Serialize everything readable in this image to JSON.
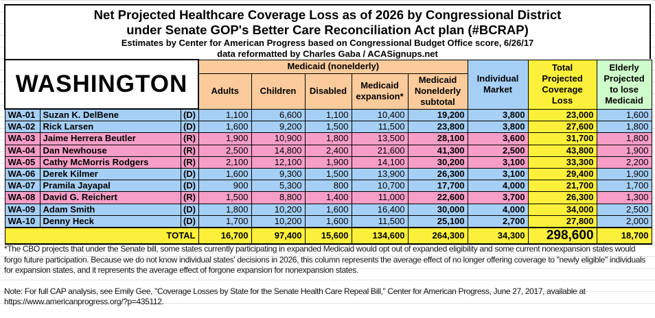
{
  "title": {
    "line1": "Net Projected Healthcare Coverage Loss as of 2026 by Congressional District",
    "line2": "under Senate GOP's Better Care Reconciliation Act plan (#BCRAP)",
    "line3": "Estimates by Center for American Progress based on Congressional Budget Office score, 6/26/17",
    "line4": "data reformatted by Charles Gaba / ACASignups.net"
  },
  "state": "WASHINGTON",
  "headers": {
    "medicaid_group": "Medicaid (nonelderly)",
    "adults": "Adults",
    "children": "Children",
    "disabled": "Disabled",
    "expansion": "Medicaid expansion*",
    "subtotal": "Medicaid Nonelderly subtotal",
    "individual": "Individual Market",
    "total": "Total Projected Coverage Loss",
    "elderly": "Elderly Projected to lose Medicaid"
  },
  "colors": {
    "democrat": "#a6cff5",
    "republican": "#f79ec8",
    "medicaid_header": "#fbcb9c",
    "total": "#fdf03a",
    "elderly_header": "#cffccb"
  },
  "rows": [
    {
      "district": "WA-01",
      "name": "Suzan K. DelBene",
      "party": "(D)",
      "adults": "1,100",
      "children": "6,600",
      "disabled": "1,100",
      "expansion": "10,400",
      "subtotal": "19,200",
      "individual": "3,800",
      "total": "23,000",
      "elderly": "1,600"
    },
    {
      "district": "WA-02",
      "name": "Rick Larsen",
      "party": "(D)",
      "adults": "1,600",
      "children": "9,200",
      "disabled": "1,500",
      "expansion": "11,500",
      "subtotal": "23,800",
      "individual": "3,800",
      "total": "27,600",
      "elderly": "1,800"
    },
    {
      "district": "WA-03",
      "name": "Jaime Herrera Beutler",
      "party": "(R)",
      "adults": "1,900",
      "children": "10,900",
      "disabled": "1,800",
      "expansion": "13,500",
      "subtotal": "28,100",
      "individual": "3,600",
      "total": "31,700",
      "elderly": "1,800"
    },
    {
      "district": "WA-04",
      "name": "Dan Newhouse",
      "party": "(R)",
      "adults": "2,500",
      "children": "14,800",
      "disabled": "2,400",
      "expansion": "21,600",
      "subtotal": "41,300",
      "individual": "2,500",
      "total": "43,800",
      "elderly": "1,900"
    },
    {
      "district": "WA-05",
      "name": "Cathy McMorris Rodgers",
      "party": "(R)",
      "adults": "2,100",
      "children": "12,100",
      "disabled": "1,900",
      "expansion": "14,100",
      "subtotal": "30,200",
      "individual": "3,100",
      "total": "33,300",
      "elderly": "2,200"
    },
    {
      "district": "WA-06",
      "name": "Derek Kilmer",
      "party": "(D)",
      "adults": "1,600",
      "children": "9,300",
      "disabled": "1,500",
      "expansion": "13,900",
      "subtotal": "26,300",
      "individual": "3,100",
      "total": "29,400",
      "elderly": "1,900"
    },
    {
      "district": "WA-07",
      "name": "Pramila Jayapal",
      "party": "(D)",
      "adults": "900",
      "children": "5,300",
      "disabled": "800",
      "expansion": "10,700",
      "subtotal": "17,700",
      "individual": "4,000",
      "total": "21,700",
      "elderly": "1,700"
    },
    {
      "district": "WA-08",
      "name": "David G. Reichert",
      "party": "(R)",
      "adults": "1,500",
      "children": "8,800",
      "disabled": "1,400",
      "expansion": "11,000",
      "subtotal": "22,600",
      "individual": "3,700",
      "total": "26,300",
      "elderly": "1,300"
    },
    {
      "district": "WA-09",
      "name": "Adam Smith",
      "party": "(D)",
      "adults": "1,800",
      "children": "10,200",
      "disabled": "1,600",
      "expansion": "16,400",
      "subtotal": "30,000",
      "individual": "4,000",
      "total": "34,000",
      "elderly": "2,500"
    },
    {
      "district": "WA-10",
      "name": "Denny Heck",
      "party": "(D)",
      "adults": "1,700",
      "children": "10,200",
      "disabled": "1,600",
      "expansion": "11,500",
      "subtotal": "25,100",
      "individual": "2,700",
      "total": "27,800",
      "elderly": "2,000"
    }
  ],
  "totals": {
    "label": "TOTAL",
    "adults": "16,700",
    "children": "97,400",
    "disabled": "15,600",
    "expansion": "134,600",
    "subtotal": "264,300",
    "individual": "34,300",
    "total": "298,600",
    "elderly": "18,700"
  },
  "notes": {
    "footnote": "*The CBO projects that under the Senate bill, some states currently participating in expanded Medicaid would opt out of expanded eligibility and some current nonexpansion states would forgo future participation. Because we do not know individual states' decisions in 2026, this column represents the average effect of no longer offering coverage to \"newly eligible\" individuals for expansion states, and it represents the average effect of forgone expansion for nonexpansion states.",
    "source": "Note: For full CAP analysis, see Emily Gee, \"Coverage Losses by State for the Senate Health Care Repeal Bill,\" Center for American Progress, June 27, 2017, available at https://www.americanprogress.org/?p=435112."
  }
}
